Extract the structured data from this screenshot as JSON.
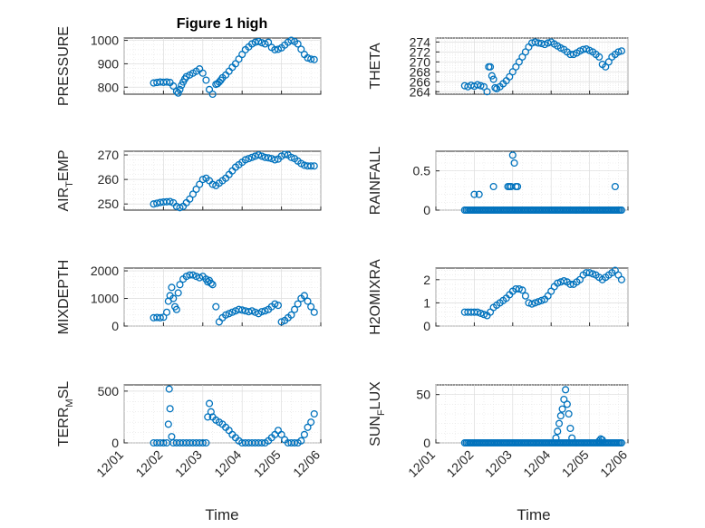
{
  "figure": {
    "title": "Figure 1 high"
  },
  "chart_data": [
    {
      "type": "scatter",
      "ylabel": "PRESSURE",
      "ylim": [
        770,
        1010
      ],
      "yticks": [
        800,
        900,
        1000
      ],
      "grid": true,
      "x_range": [
        "12/01",
        "12/06"
      ],
      "x_tick_labels": [],
      "x": [
        "12/01 18:00",
        "12/01 20:00",
        "12/01 22:00",
        "12/02 00:00",
        "12/02 02:00",
        "12/02 04:00",
        "12/02 06:00",
        "12/02 08:00",
        "12/02 09:00",
        "12/02 10:00",
        "12/02 11:00",
        "12/02 12:00",
        "12/02 13:00",
        "12/02 14:00",
        "12/02 16:00",
        "12/02 18:00",
        "12/02 20:00",
        "12/02 22:00",
        "12/03 00:00",
        "12/03 02:00",
        "12/03 04:00",
        "12/03 06:00",
        "12/03 08:00",
        "12/03 09:00",
        "12/03 10:00",
        "12/03 11:00",
        "12/03 12:00",
        "12/03 14:00",
        "12/03 16:00",
        "12/03 18:00",
        "12/03 20:00",
        "12/03 22:00",
        "12/04 00:00",
        "12/04 02:00",
        "12/04 04:00",
        "12/04 06:00",
        "12/04 08:00",
        "12/04 10:00",
        "12/04 12:00",
        "12/04 14:00",
        "12/04 16:00",
        "12/04 18:00",
        "12/04 20:00",
        "12/04 22:00",
        "12/05 00:00",
        "12/05 02:00",
        "12/05 04:00",
        "12/05 06:00",
        "12/05 08:00",
        "12/05 10:00",
        "12/05 12:00",
        "12/05 14:00",
        "12/05 16:00",
        "12/05 18:00",
        "12/05 20:00"
      ],
      "y": [
        818,
        820,
        822,
        821,
        822,
        820,
        805,
        782,
        775,
        790,
        808,
        822,
        835,
        845,
        852,
        860,
        868,
        878,
        860,
        830,
        790,
        770,
        812,
        815,
        822,
        830,
        840,
        852,
        868,
        885,
        900,
        920,
        940,
        960,
        972,
        985,
        992,
        995,
        990,
        985,
        992,
        970,
        960,
        962,
        968,
        980,
        992,
        1000,
        995,
        985,
        962,
        940,
        925,
        920,
        918
      ]
    },
    {
      "type": "scatter",
      "ylabel": "THETA",
      "ylim": [
        263.5,
        274.8
      ],
      "yticks": [
        264,
        266,
        268,
        270,
        272,
        274
      ],
      "grid": true,
      "x_range": [
        "12/01",
        "12/06"
      ],
      "x_tick_labels": [],
      "x": [
        "12/01 18:00",
        "12/01 20:00",
        "12/01 22:00",
        "12/02 00:00",
        "12/02 02:00",
        "12/02 04:00",
        "12/02 06:00",
        "12/02 08:00",
        "12/02 09:00",
        "12/02 10:00",
        "12/02 11:00",
        "12/02 12:00",
        "12/02 13:00",
        "12/02 14:00",
        "12/02 16:00",
        "12/02 18:00",
        "12/02 20:00",
        "12/02 22:00",
        "12/03 00:00",
        "12/03 02:00",
        "12/03 04:00",
        "12/03 06:00",
        "12/03 08:00",
        "12/03 10:00",
        "12/03 12:00",
        "12/03 14:00",
        "12/03 16:00",
        "12/03 18:00",
        "12/03 20:00",
        "12/03 22:00",
        "12/04 00:00",
        "12/04 02:00",
        "12/04 04:00",
        "12/04 06:00",
        "12/04 08:00",
        "12/04 10:00",
        "12/04 12:00",
        "12/04 14:00",
        "12/04 16:00",
        "12/04 18:00",
        "12/04 20:00",
        "12/04 22:00",
        "12/05 00:00",
        "12/05 02:00",
        "12/05 04:00",
        "12/05 06:00",
        "12/05 08:00",
        "12/05 10:00",
        "12/05 12:00",
        "12/05 14:00",
        "12/05 16:00",
        "12/05 18:00",
        "12/05 20:00"
      ],
      "y": [
        265.2,
        265.0,
        265.3,
        265.1,
        265.4,
        265.2,
        265.0,
        264.0,
        269.0,
        269.0,
        267.2,
        266.5,
        264.8,
        264.6,
        265.0,
        265.6,
        266.2,
        267.0,
        268.0,
        269.0,
        270.0,
        271.0,
        272.0,
        273.0,
        273.8,
        274.0,
        273.8,
        273.7,
        273.5,
        273.8,
        274.0,
        273.6,
        273.2,
        272.8,
        272.5,
        272.0,
        271.5,
        271.5,
        271.8,
        272.2,
        272.5,
        272.6,
        272.3,
        272.0,
        271.5,
        271.0,
        269.5,
        269.0,
        270.0,
        271.0,
        271.5,
        272.0,
        272.2
      ]
    },
    {
      "type": "scatter",
      "ylabel": "AIR_TEMP",
      "ylim": [
        247.5,
        271.5
      ],
      "yticks": [
        250,
        260,
        270
      ],
      "grid": true,
      "x_range": [
        "12/01",
        "12/06"
      ],
      "x_tick_labels": [],
      "x": [
        "12/01 18:00",
        "12/01 20:00",
        "12/01 22:00",
        "12/02 00:00",
        "12/02 02:00",
        "12/02 04:00",
        "12/02 06:00",
        "12/02 08:00",
        "12/02 10:00",
        "12/02 12:00",
        "12/02 14:00",
        "12/02 16:00",
        "12/02 18:00",
        "12/02 20:00",
        "12/02 22:00",
        "12/03 00:00",
        "12/03 02:00",
        "12/03 04:00",
        "12/03 06:00",
        "12/03 08:00",
        "12/03 10:00",
        "12/03 12:00",
        "12/03 14:00",
        "12/03 16:00",
        "12/03 18:00",
        "12/03 20:00",
        "12/03 22:00",
        "12/04 00:00",
        "12/04 02:00",
        "12/04 04:00",
        "12/04 06:00",
        "12/04 08:00",
        "12/04 10:00",
        "12/04 12:00",
        "12/04 14:00",
        "12/04 16:00",
        "12/04 18:00",
        "12/04 20:00",
        "12/04 22:00",
        "12/05 00:00",
        "12/05 02:00",
        "12/05 04:00",
        "12/05 06:00",
        "12/05 08:00",
        "12/05 10:00",
        "12/05 12:00",
        "12/05 14:00",
        "12/05 16:00",
        "12/05 18:00",
        "12/05 20:00"
      ],
      "y": [
        250.0,
        250.3,
        250.6,
        250.8,
        250.9,
        251.0,
        250.5,
        249.0,
        248.5,
        249.0,
        250.5,
        252.0,
        254.0,
        256.0,
        258.0,
        260.0,
        260.5,
        259.5,
        258.0,
        257.5,
        258.5,
        259.5,
        260.5,
        262.0,
        263.5,
        265.0,
        266.0,
        267.0,
        268.0,
        268.5,
        269.0,
        269.5,
        270.0,
        269.5,
        269.0,
        268.8,
        268.5,
        268.0,
        268.3,
        269.5,
        270.2,
        270.0,
        269.0,
        268.5,
        267.5,
        266.5,
        265.8,
        265.5,
        265.5,
        265.5
      ]
    },
    {
      "type": "scatter",
      "ylabel": "RAINFALL",
      "ylim": [
        0,
        0.75
      ],
      "yticks": [
        0,
        0.5
      ],
      "grid": true,
      "x_range": [
        "12/01",
        "12/06"
      ],
      "x_tick_labels": [],
      "baseline_zero_from_to": [
        "12/01 18:00",
        "12/05 20:00"
      ],
      "x": [
        "12/02 00:00",
        "12/02 03:00",
        "12/02 12:00",
        "12/02 21:00",
        "12/02 22:00",
        "12/02 23:00",
        "12/03 00:00",
        "12/03 01:00",
        "12/03 02:00",
        "12/03 03:00",
        "12/05 16:00"
      ],
      "y": [
        0.2,
        0.2,
        0.3,
        0.3,
        0.3,
        0.3,
        0.7,
        0.6,
        0.3,
        0.3,
        0.3
      ]
    },
    {
      "type": "scatter",
      "ylabel": "MIXDEPTH",
      "ylim": [
        0,
        2100
      ],
      "yticks": [
        0,
        1000,
        2000
      ],
      "grid": true,
      "x_range": [
        "12/01",
        "12/06"
      ],
      "x_tick_labels": [],
      "x": [
        "12/01 18:00",
        "12/01 20:00",
        "12/01 22:00",
        "12/02 00:00",
        "12/02 02:00",
        "12/02 03:00",
        "12/02 04:00",
        "12/02 05:00",
        "12/02 06:00",
        "12/02 07:00",
        "12/02 08:00",
        "12/02 09:00",
        "12/02 10:00",
        "12/02 12:00",
        "12/02 14:00",
        "12/02 16:00",
        "12/02 18:00",
        "12/02 20:00",
        "12/02 22:00",
        "12/03 00:00",
        "12/03 02:00",
        "12/03 03:00",
        "12/03 04:00",
        "12/03 05:00",
        "12/03 06:00",
        "12/03 08:00",
        "12/03 10:00",
        "12/03 12:00",
        "12/03 14:00",
        "12/03 16:00",
        "12/03 18:00",
        "12/03 20:00",
        "12/03 22:00",
        "12/04 00:00",
        "12/04 02:00",
        "12/04 04:00",
        "12/04 06:00",
        "12/04 08:00",
        "12/04 10:00",
        "12/04 12:00",
        "12/04 14:00",
        "12/04 16:00",
        "12/04 18:00",
        "12/04 20:00",
        "12/04 22:00",
        "12/05 00:00",
        "12/05 02:00",
        "12/05 04:00",
        "12/05 06:00",
        "12/05 08:00",
        "12/05 10:00",
        "12/05 12:00",
        "12/05 14:00",
        "12/05 16:00",
        "12/05 18:00",
        "12/05 20:00"
      ],
      "y": [
        300,
        310,
        300,
        320,
        500,
        900,
        1100,
        1400,
        1000,
        700,
        600,
        1200,
        1500,
        1700,
        1800,
        1850,
        1850,
        1800,
        1750,
        1800,
        1700,
        1600,
        1650,
        1550,
        1500,
        700,
        150,
        300,
        400,
        450,
        500,
        550,
        600,
        580,
        550,
        520,
        550,
        500,
        450,
        520,
        550,
        600,
        700,
        800,
        750,
        150,
        200,
        300,
        400,
        600,
        800,
        1000,
        1100,
        900,
        700,
        500
      ]
    },
    {
      "type": "scatter",
      "ylabel": "H2OMIXRA",
      "ylim": [
        0,
        2.5
      ],
      "yticks": [
        0,
        1,
        2
      ],
      "grid": true,
      "x_range": [
        "12/01",
        "12/06"
      ],
      "x_tick_labels": [],
      "x": [
        "12/01 18:00",
        "12/01 20:00",
        "12/01 22:00",
        "12/02 00:00",
        "12/02 02:00",
        "12/02 04:00",
        "12/02 06:00",
        "12/02 08:00",
        "12/02 10:00",
        "12/02 12:00",
        "12/02 14:00",
        "12/02 16:00",
        "12/02 18:00",
        "12/02 20:00",
        "12/02 22:00",
        "12/03 00:00",
        "12/03 02:00",
        "12/03 04:00",
        "12/03 06:00",
        "12/03 08:00",
        "12/03 10:00",
        "12/03 12:00",
        "12/03 14:00",
        "12/03 16:00",
        "12/03 18:00",
        "12/03 20:00",
        "12/03 22:00",
        "12/04 00:00",
        "12/04 02:00",
        "12/04 04:00",
        "12/04 06:00",
        "12/04 08:00",
        "12/04 10:00",
        "12/04 12:00",
        "12/04 14:00",
        "12/04 16:00",
        "12/04 18:00",
        "12/04 20:00",
        "12/04 22:00",
        "12/05 00:00",
        "12/05 02:00",
        "12/05 04:00",
        "12/05 06:00",
        "12/05 08:00",
        "12/05 10:00",
        "12/05 12:00",
        "12/05 14:00",
        "12/05 16:00",
        "12/05 18:00",
        "12/05 20:00"
      ],
      "y": [
        0.6,
        0.6,
        0.6,
        0.6,
        0.6,
        0.55,
        0.5,
        0.45,
        0.6,
        0.8,
        0.9,
        1.0,
        1.1,
        1.2,
        1.35,
        1.5,
        1.6,
        1.6,
        1.55,
        1.3,
        1.0,
        0.95,
        1.0,
        1.05,
        1.1,
        1.15,
        1.3,
        1.5,
        1.7,
        1.85,
        1.9,
        1.95,
        1.9,
        1.8,
        1.8,
        1.9,
        2.0,
        2.2,
        2.3,
        2.3,
        2.25,
        2.2,
        2.1,
        2.0,
        2.1,
        2.2,
        2.3,
        2.4,
        2.2,
        2.0
      ]
    },
    {
      "type": "scatter",
      "ylabel": "TERR_MSL",
      "ylim": [
        0,
        560
      ],
      "yticks": [
        0,
        500
      ],
      "grid": true,
      "x_range": [
        "12/01",
        "12/06"
      ],
      "x_tick_labels": [
        "12/01",
        "12/02",
        "12/03",
        "12/04",
        "12/05",
        "12/06"
      ],
      "x": [
        "12/01 18:00",
        "12/01 20:00",
        "12/01 22:00",
        "12/02 00:00",
        "12/02 02:00",
        "12/02 03:00",
        "12/02 03:30",
        "12/02 04:00",
        "12/02 05:00",
        "12/02 06:00",
        "12/02 08:00",
        "12/02 10:00",
        "12/02 12:00",
        "12/02 14:00",
        "12/02 16:00",
        "12/02 18:00",
        "12/02 20:00",
        "12/02 22:00",
        "12/03 00:00",
        "12/03 02:00",
        "12/03 03:00",
        "12/03 04:00",
        "12/03 05:00",
        "12/03 06:00",
        "12/03 08:00",
        "12/03 10:00",
        "12/03 12:00",
        "12/03 14:00",
        "12/03 16:00",
        "12/03 18:00",
        "12/03 20:00",
        "12/03 22:00",
        "12/04 00:00",
        "12/04 02:00",
        "12/04 04:00",
        "12/04 06:00",
        "12/04 08:00",
        "12/04 10:00",
        "12/04 12:00",
        "12/04 14:00",
        "12/04 16:00",
        "12/04 18:00",
        "12/04 20:00",
        "12/04 22:00",
        "12/05 00:00",
        "12/05 02:00",
        "12/05 04:00",
        "12/05 06:00",
        "12/05 08:00",
        "12/05 10:00",
        "12/05 12:00",
        "12/05 14:00",
        "12/05 16:00",
        "12/05 18:00",
        "12/05 20:00"
      ],
      "y": [
        0,
        0,
        0,
        0,
        0,
        180,
        520,
        330,
        60,
        0,
        0,
        0,
        0,
        0,
        0,
        0,
        0,
        0,
        0,
        0,
        250,
        380,
        300,
        250,
        220,
        200,
        180,
        150,
        120,
        80,
        50,
        20,
        0,
        0,
        0,
        0,
        0,
        0,
        0,
        0,
        20,
        50,
        80,
        120,
        80,
        30,
        0,
        0,
        0,
        0,
        20,
        80,
        150,
        200,
        280
      ]
    },
    {
      "type": "scatter",
      "ylabel": "SUN_FLUX",
      "ylim": [
        0,
        60
      ],
      "yticks": [
        0,
        50
      ],
      "grid": true,
      "x_range": [
        "12/01",
        "12/06"
      ],
      "x_tick_labels": [
        "12/01",
        "12/02",
        "12/03",
        "12/04",
        "12/05",
        "12/06"
      ],
      "baseline_zero_from_to": [
        "12/01 18:00",
        "12/05 20:00"
      ],
      "x": [
        "12/04 03:00",
        "12/04 04:00",
        "12/04 05:00",
        "12/04 06:00",
        "12/04 07:00",
        "12/04 08:00",
        "12/04 09:00",
        "12/04 10:00",
        "12/04 11:00",
        "12/04 12:00",
        "12/04 13:00",
        "12/05 06:00",
        "12/05 07:00",
        "12/05 08:00"
      ],
      "y": [
        5,
        12,
        20,
        28,
        35,
        45,
        55,
        40,
        30,
        15,
        5,
        2,
        4,
        3
      ]
    }
  ],
  "xlabel": "Time",
  "colors": {
    "marker": "#0072bd",
    "axis": "#262626",
    "grid": "#dcdcdc"
  }
}
